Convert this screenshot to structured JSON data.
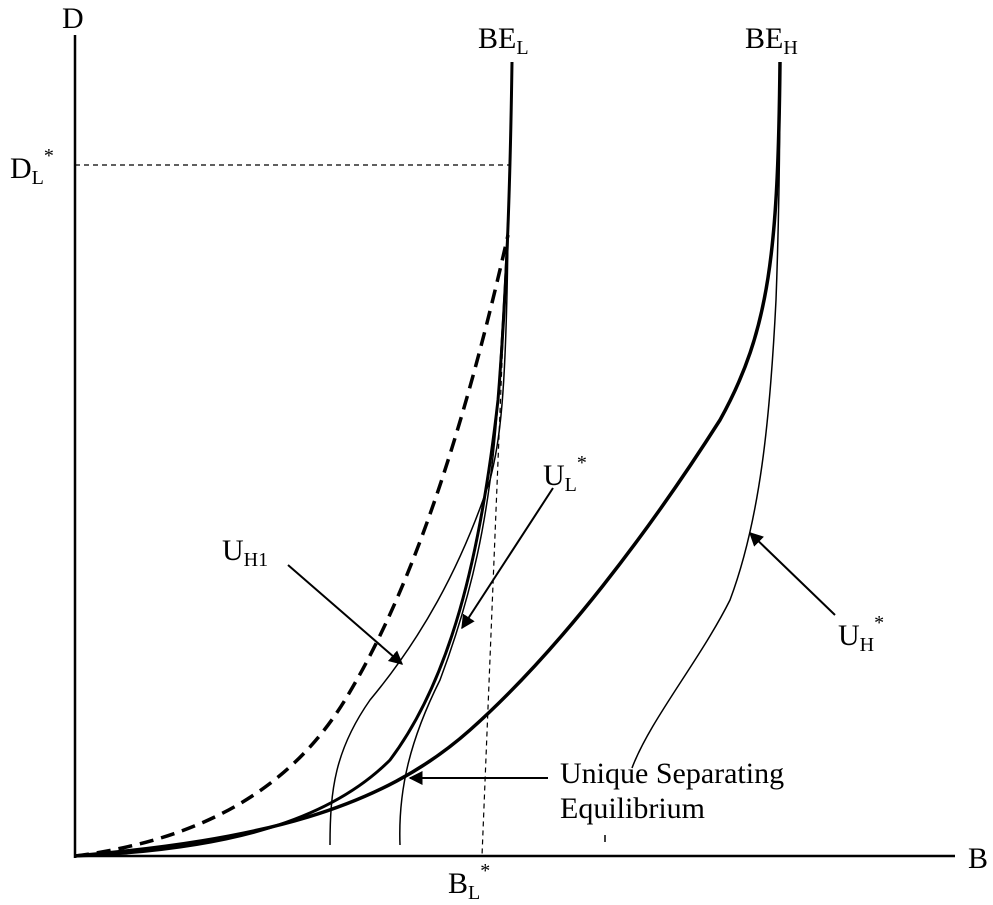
{
  "axes": {
    "y_label": "D",
    "x_label": "B"
  },
  "curves": {
    "be_low": {
      "main": "BE",
      "sub": "L"
    },
    "be_high": {
      "main": "BE",
      "sub": "H"
    }
  },
  "markers": {
    "dl_star": {
      "main": "D",
      "sub": "L",
      "sup": "*"
    },
    "bl_star": {
      "main": "B",
      "sub": "L",
      "sup": "*"
    }
  },
  "annotations": {
    "u_h1": {
      "main": "U",
      "sub": "H1"
    },
    "u_l_star": {
      "main": "U",
      "sub": "L",
      "sup": "*"
    },
    "u_h_star": {
      "main": "U",
      "sub": "H",
      "sup": "*"
    },
    "equilibrium_line1": "Unique Separating",
    "equilibrium_line2": "Equilibrium"
  }
}
